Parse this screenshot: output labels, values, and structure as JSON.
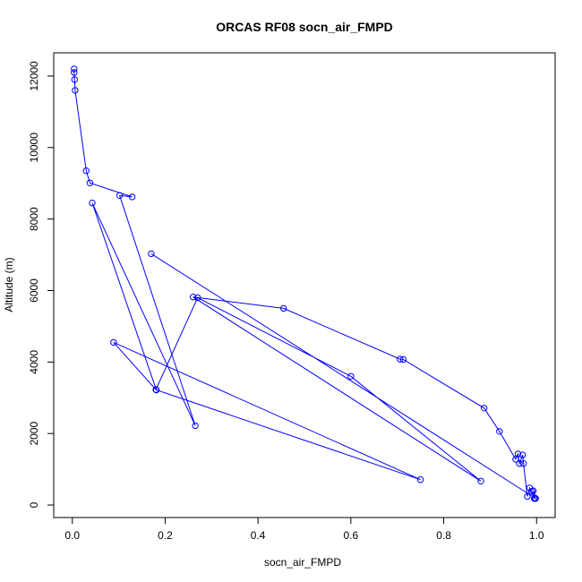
{
  "chart_data": {
    "type": "line",
    "title": "ORCAS RF08 socn_air_FMPD",
    "xlabel": "socn_air_FMPD",
    "ylabel": "Altitude (m)",
    "xlim": [
      -0.04,
      1.04
    ],
    "ylim": [
      -350,
      12650
    ],
    "xticks": [
      0.0,
      0.2,
      0.4,
      0.6,
      0.8,
      1.0
    ],
    "xtick_labels": [
      "0.0",
      "0.2",
      "0.4",
      "0.6",
      "0.8",
      "1.0"
    ],
    "yticks": [
      0,
      2000,
      4000,
      6000,
      8000,
      10000,
      12000
    ],
    "ytick_labels": [
      "0",
      "2000",
      "4000",
      "6000",
      "8000",
      "10000",
      "12000"
    ],
    "grid": false,
    "markers": "open-circle",
    "color": "#0000ff",
    "series": [
      {
        "x": [
          0.004,
          0.004,
          0.005,
          0.006,
          0.03,
          0.038,
          0.129,
          0.102,
          0.265,
          0.043,
          0.181,
          0.75,
          0.089,
          0.18,
          0.27,
          0.6,
          0.88,
          0.26,
          0.455,
          0.706,
          0.713,
          0.887,
          0.92,
          0.955,
          0.96,
          0.963,
          0.97,
          0.972,
          0.98,
          0.985,
          0.99,
          0.995,
          0.993,
          0.998,
          0.996,
          0.17
        ],
        "y": [
          12200,
          12100,
          11900,
          11600,
          9350,
          9010,
          8620,
          8660,
          2220,
          8450,
          3220,
          710,
          4550,
          3230,
          5800,
          3600,
          670,
          5820,
          5500,
          4080,
          4070,
          2710,
          2060,
          1280,
          1430,
          1160,
          1400,
          1160,
          240,
          480,
          380,
          180,
          400,
          180,
          200,
          7030
        ]
      }
    ]
  }
}
